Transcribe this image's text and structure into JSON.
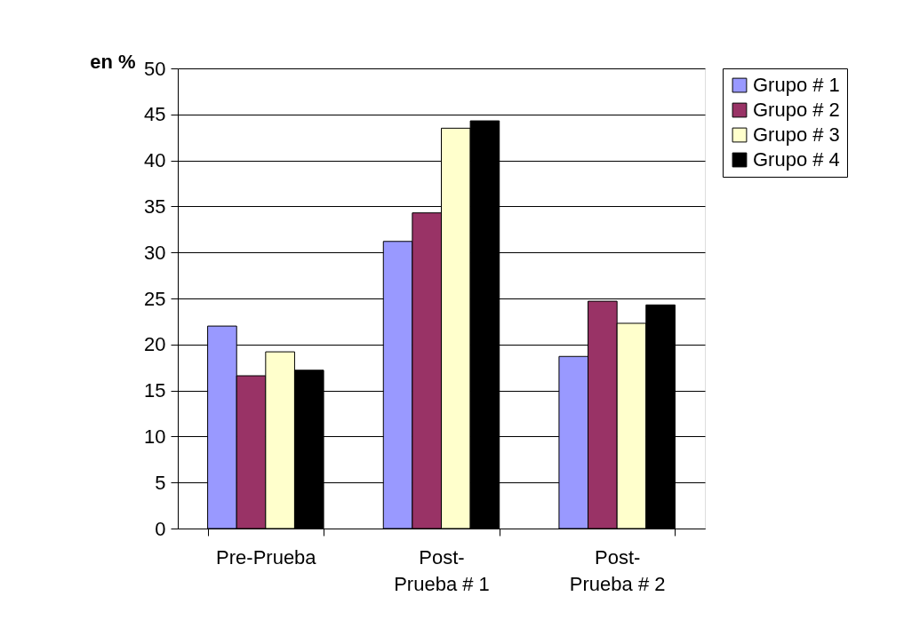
{
  "chart_data": {
    "type": "bar",
    "ylabel": "en %",
    "categories": [
      "Pre-Prueba",
      "Post-Prueba # 1",
      "Post-Prueba # 2"
    ],
    "series": [
      {
        "name": "Grupo # 1",
        "color": "#9999ff",
        "values": [
          22.0,
          31.2,
          18.7
        ]
      },
      {
        "name": "Grupo # 2",
        "color": "#993366",
        "values": [
          16.6,
          34.3,
          24.7
        ]
      },
      {
        "name": "Grupo # 3",
        "color": "#ffffcc",
        "values": [
          19.2,
          43.5,
          22.3
        ]
      },
      {
        "name": "Grupo # 4",
        "color": "#000000",
        "values": [
          17.2,
          44.3,
          24.3
        ]
      }
    ],
    "ylim": [
      0,
      50
    ],
    "yticks": [
      0,
      5,
      10,
      15,
      20,
      25,
      30,
      35,
      40,
      45,
      50
    ],
    "grid": "y",
    "legend": "right"
  }
}
